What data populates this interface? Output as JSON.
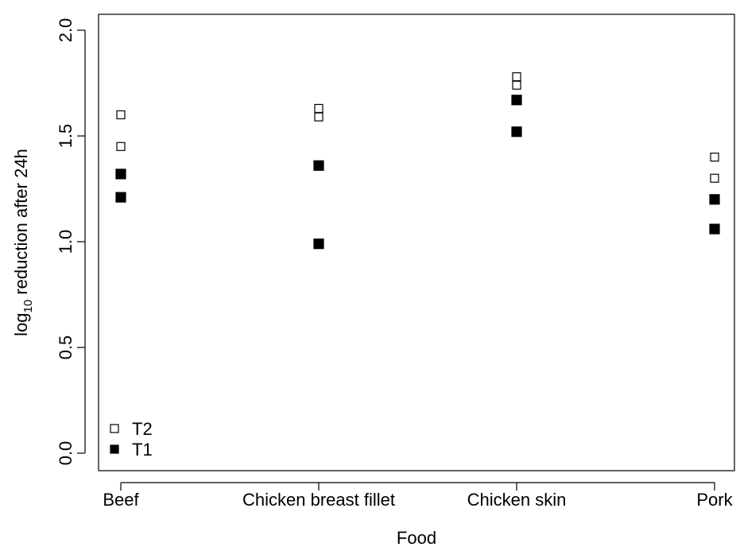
{
  "chart_data": {
    "type": "scatter",
    "title": "",
    "xlabel": "Food",
    "ylabel": {
      "prefix": "log",
      "subscript": "10",
      "suffix": " reduction after 24h"
    },
    "categories": [
      "Beef",
      "Chicken breast fillet",
      "Chicken skin",
      "Pork"
    ],
    "ylim": [
      0.0,
      2.0
    ],
    "yticks": [
      "0.0",
      "0.5",
      "1.0",
      "1.5",
      "2.0"
    ],
    "grid": false,
    "legend_position": "bottom-left",
    "series": [
      {
        "name": "T2",
        "marker": "open-square",
        "color": "#000000",
        "points": [
          {
            "category": "Beef",
            "y": 1.6
          },
          {
            "category": "Beef",
            "y": 1.45
          },
          {
            "category": "Chicken breast fillet",
            "y": 1.63
          },
          {
            "category": "Chicken breast fillet",
            "y": 1.59
          },
          {
            "category": "Chicken skin",
            "y": 1.78
          },
          {
            "category": "Chicken skin",
            "y": 1.74
          },
          {
            "category": "Pork",
            "y": 1.4
          },
          {
            "category": "Pork",
            "y": 1.3
          }
        ]
      },
      {
        "name": "T1",
        "marker": "filled-square",
        "color": "#000000",
        "points": [
          {
            "category": "Beef",
            "y": 1.32
          },
          {
            "category": "Beef",
            "y": 1.21
          },
          {
            "category": "Chicken breast fillet",
            "y": 1.36
          },
          {
            "category": "Chicken breast fillet",
            "y": 0.99
          },
          {
            "category": "Chicken skin",
            "y": 1.67
          },
          {
            "category": "Chicken skin",
            "y": 1.52
          },
          {
            "category": "Pork",
            "y": 1.2
          },
          {
            "category": "Pork",
            "y": 1.06
          }
        ]
      }
    ]
  }
}
